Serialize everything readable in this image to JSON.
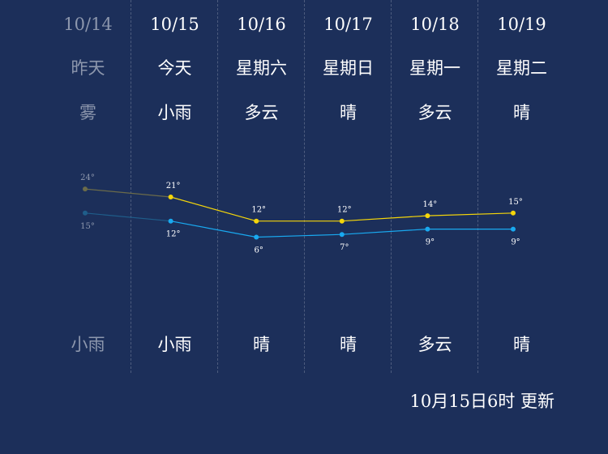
{
  "days": [
    {
      "date": "10/14",
      "weekday": "昨天",
      "day_weather": "雾",
      "night_weather": "小雨",
      "past": true
    },
    {
      "date": "10/15",
      "weekday": "今天",
      "day_weather": "小雨",
      "night_weather": "小雨",
      "past": false
    },
    {
      "date": "10/16",
      "weekday": "星期六",
      "day_weather": "多云",
      "night_weather": "晴",
      "past": false
    },
    {
      "date": "10/17",
      "weekday": "星期日",
      "day_weather": "晴",
      "night_weather": "晴",
      "past": false
    },
    {
      "date": "10/18",
      "weekday": "星期一",
      "day_weather": "多云",
      "night_weather": "多云",
      "past": false
    },
    {
      "date": "10/19",
      "weekday": "星期二",
      "day_weather": "晴",
      "night_weather": "晴",
      "past": false
    }
  ],
  "chart_data": {
    "type": "line",
    "categories": [
      "10/14",
      "10/15",
      "10/16",
      "10/17",
      "10/18",
      "10/19"
    ],
    "series": [
      {
        "values": [
          24,
          21,
          12,
          12,
          14,
          15
        ],
        "color": "#f5d60a",
        "past_color": "#6b6b4a"
      },
      {
        "values": [
          15,
          12,
          6,
          7,
          9,
          9
        ],
        "color": "#19a9f0",
        "past_color": "#1f5d8a"
      }
    ],
    "label_suffix": "°"
  },
  "updated_text": "10月15日6时 更新"
}
